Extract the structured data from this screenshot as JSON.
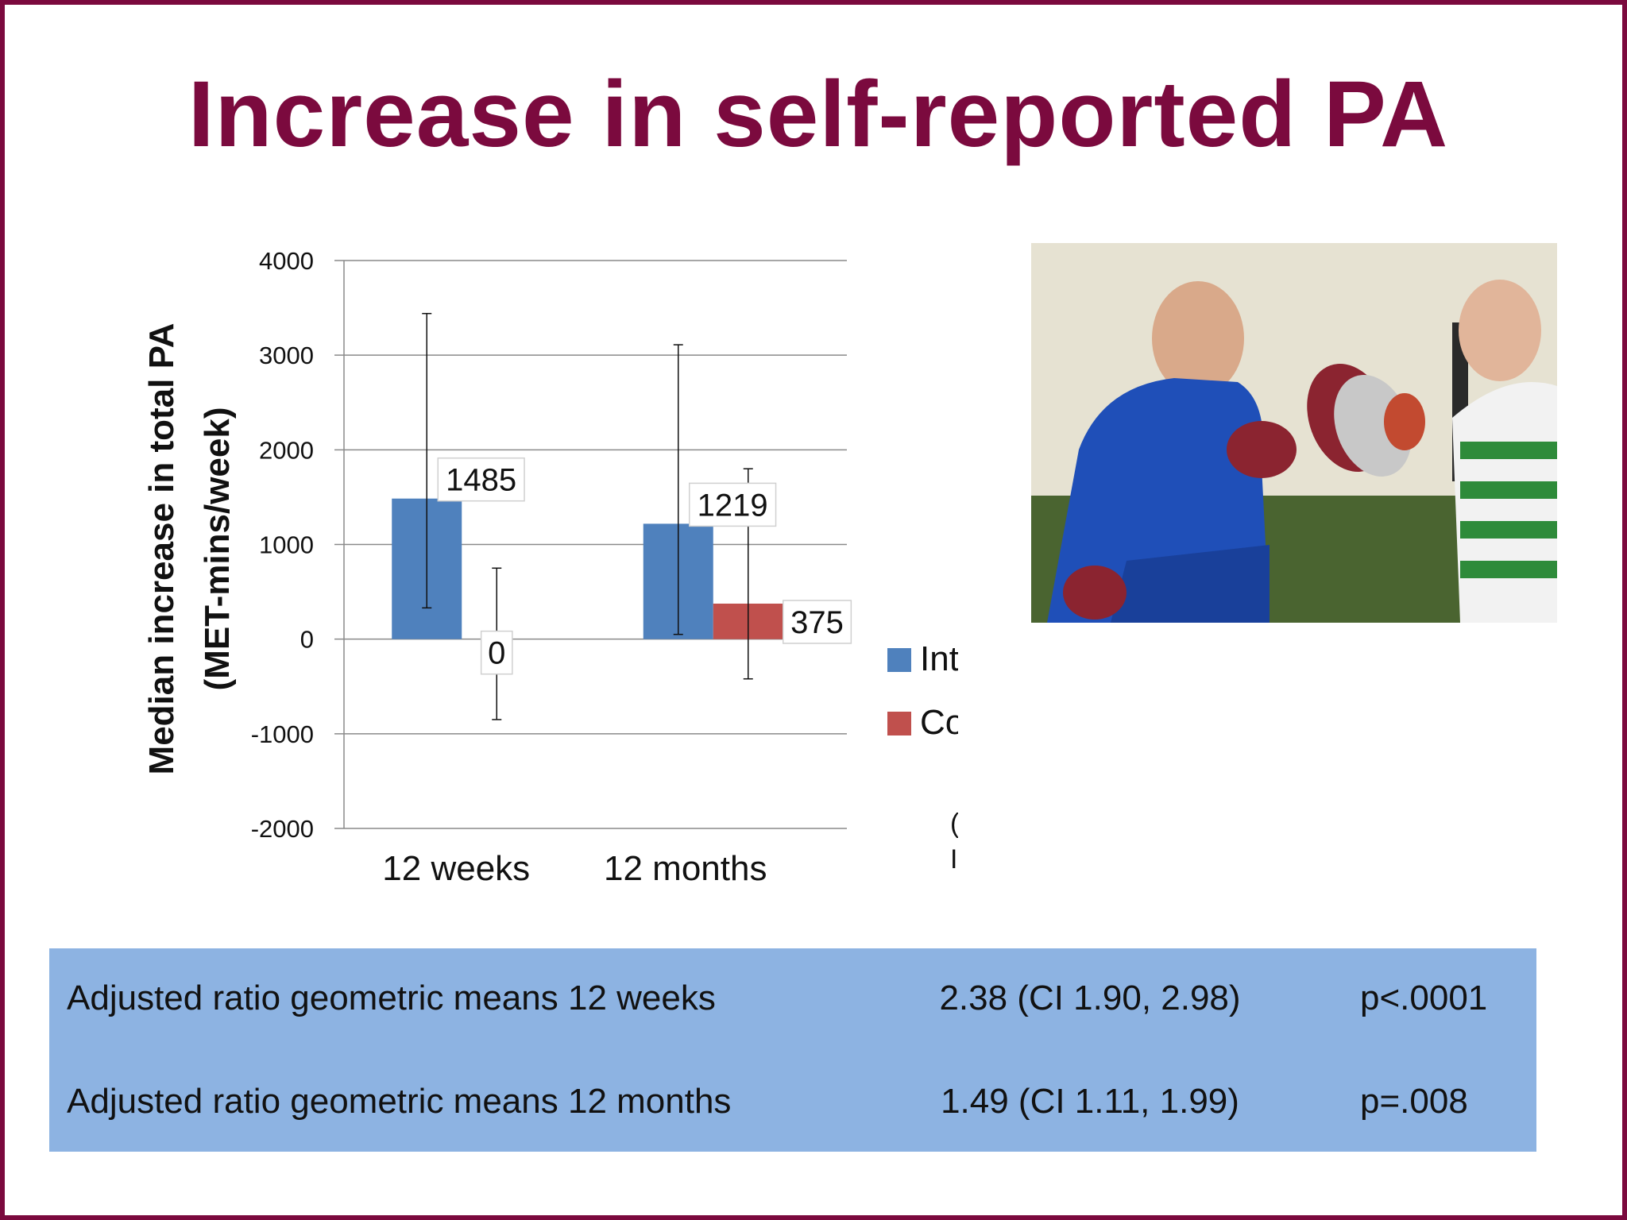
{
  "slide": {
    "title": "Increase in self-reported PA",
    "note_line1": "(Error bars represent",
    "note_line2": "IQ range)"
  },
  "photo": {
    "description_icon": "boxing-photo-icon"
  },
  "stats": [
    {
      "label": "Adjusted ratio geometric means 12 weeks",
      "ci": "2.38 (CI 1.90, 2.98)",
      "p": "p<.0001"
    },
    {
      "label": "Adjusted ratio geometric means 12 months",
      "ci": "1.49 (CI 1.11, 1.99)",
      "p": "p=.008"
    }
  ],
  "chart_data": {
    "type": "bar",
    "ylabel_line1": "Median increase in total PA",
    "ylabel_line2": "(MET-mins/week)",
    "categories": [
      "12 weeks",
      "12 months"
    ],
    "ylim": [
      -2000,
      4000
    ],
    "yticks": [
      4000,
      3000,
      2000,
      1000,
      0,
      -1000,
      -2000
    ],
    "grid": true,
    "legend_position": "right",
    "series": [
      {
        "name": "Intervention",
        "color": "#4f81bd",
        "values": [
          1485,
          1219
        ],
        "error_low": [
          330,
          50
        ],
        "error_high": [
          3440,
          3110
        ],
        "labels": [
          "1485",
          "1219"
        ]
      },
      {
        "name": "Comparison",
        "color": "#c0504d",
        "values": [
          0,
          375
        ],
        "error_low": [
          -850,
          -420
        ],
        "error_high": [
          750,
          1800
        ],
        "labels": [
          "0",
          "375"
        ]
      }
    ]
  }
}
